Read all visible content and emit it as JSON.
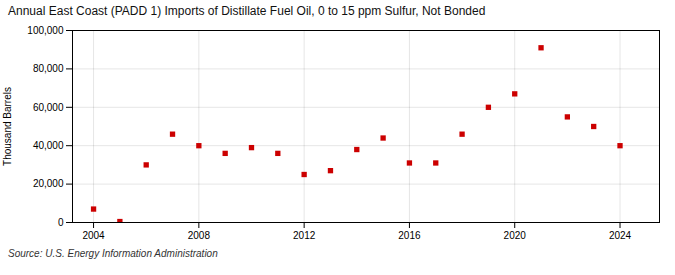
{
  "chart_data": {
    "type": "scatter",
    "title": "Annual East Coast (PADD 1) Imports of Distillate Fuel Oil, 0 to 15 ppm Sulfur, Not Bonded",
    "ylabel": "Thousand Barrels",
    "source": "Source: U.S. Energy Information Administration",
    "x": [
      2004,
      2005,
      2006,
      2007,
      2008,
      2009,
      2010,
      2011,
      2012,
      2013,
      2014,
      2015,
      2016,
      2017,
      2018,
      2019,
      2020,
      2021,
      2022,
      2023,
      2024
    ],
    "values": [
      7000,
      500,
      30000,
      46000,
      40000,
      36000,
      39000,
      36000,
      25000,
      27000,
      38000,
      44000,
      31000,
      31000,
      46000,
      60000,
      67000,
      91000,
      55000,
      50000,
      40000
    ],
    "color": "#cc0000",
    "marker": "square",
    "xlim": [
      2003.2,
      2025.5
    ],
    "ylim": [
      0,
      100000
    ],
    "xticks": [
      2004,
      2008,
      2012,
      2016,
      2020,
      2024
    ],
    "yticks": [
      0,
      {
        "value": 20000,
        "label": "20,000"
      },
      {
        "value": 40000,
        "label": "40,000"
      },
      {
        "value": 60000,
        "label": "60,000"
      },
      {
        "value": 80000,
        "label": "80,000"
      },
      {
        "value": 100000,
        "label": "100,000"
      }
    ],
    "grid": true
  }
}
